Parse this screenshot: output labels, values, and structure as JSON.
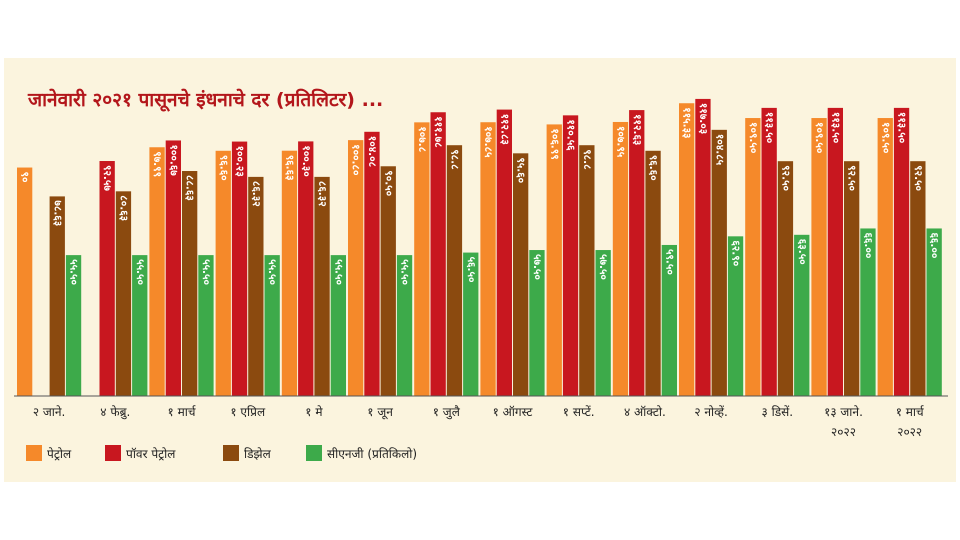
{
  "chart_data": {
    "type": "bar",
    "title": "जानेवारी २०२१ पासूनचे इंधनाचे दर (प्रतिलिटर) ...",
    "xlabel": "",
    "ylabel": "",
    "ylim": [
      0,
      130
    ],
    "grid": false,
    "legend_position": "bottom-left",
    "categories": [
      [
        "२ जाने."
      ],
      [
        "४ फेब्रु."
      ],
      [
        "१ मार्च"
      ],
      [
        "१ एप्रिल"
      ],
      [
        "१ मे"
      ],
      [
        "१ जून"
      ],
      [
        "१ जुलै"
      ],
      [
        "१ ऑगस्ट"
      ],
      [
        "१ सप्टें."
      ],
      [
        "४ ऑक्टो."
      ],
      [
        "२ नोव्हें."
      ],
      [
        "३ डिसें."
      ],
      [
        "१३ जाने.",
        "२०२२"
      ],
      [
        "१ मार्च",
        "२०२२"
      ]
    ],
    "series": [
      {
        "name": "पेट्रोल",
        "color": "#f5892a",
        "values": [
          90,
          null,
          97.99,
          96.6,
          96.63,
          100.8,
          107.8,
          107.85,
          106.99,
          107.95,
          115.33,
          109.5,
          109.5,
          109.5
        ],
        "labels": [
          "९०",
          "",
          "९७.९९",
          "९६.६०",
          "९६.६३",
          "१००.८०",
          "१०७.८",
          "१०७.८५",
          "१०६.९९",
          "१०७.९५",
          "११५.३३",
          "१०९.५०",
          "१०९.५०",
          "१०९.५०"
        ]
      },
      {
        "name": "पॉवर पेट्रोल",
        "color": "#c8171f",
        "values": [
          null,
          92.57,
          100.67,
          100.23,
          100.3,
          104.08,
          111.78,
          112.83,
          110.56,
          112.63,
          117.03,
          113.5,
          113.5,
          113.5
        ],
        "labels": [
          "",
          "९२.५७",
          "१००.६७",
          "१००.२३",
          "१००.३०",
          "१०४.०८",
          "१११.७८",
          "११२.८३",
          "११०.५६",
          "११२.६३",
          "११७.०३",
          "११३.५०",
          "११३.५०",
          "११३.५०"
        ]
      },
      {
        "name": "डिझेल",
        "color": "#8b4a0f",
        "values": [
          78.63,
          80.63,
          88.63,
          86.32,
          86.32,
          90.5,
          98.8,
          95.6,
          98.8,
          96.6,
          104.85,
          92.5,
          92.5,
          92.5
        ],
        "labels": [
          "७८.६३",
          "८०.६३",
          "८८.६३",
          "८६.३२",
          "८६.३२",
          "९०.५०",
          "९८.८",
          "९५.६०",
          "९८.८",
          "९६.६०",
          "१०४.८५",
          "९२.५०",
          "९२.५०",
          "९२.५०"
        ]
      },
      {
        "name": "सीएनजी (प्रतिकिलो)",
        "color": "#3daa4a",
        "values": [
          55.5,
          55.5,
          55.5,
          55.5,
          55.5,
          55.5,
          56.5,
          57.5,
          57.5,
          59.5,
          62.9,
          63.5,
          66.0,
          66.0
        ],
        "labels": [
          "५५.५०",
          "५५.५०",
          "५५.५०",
          "५५.५०",
          "५५.५०",
          "५५.५०",
          "५६.५०",
          "५७.५०",
          "५७.५०",
          "५९.५०",
          "६२.९०",
          "६३.५०",
          "६६.००",
          "६६.००"
        ]
      }
    ]
  }
}
